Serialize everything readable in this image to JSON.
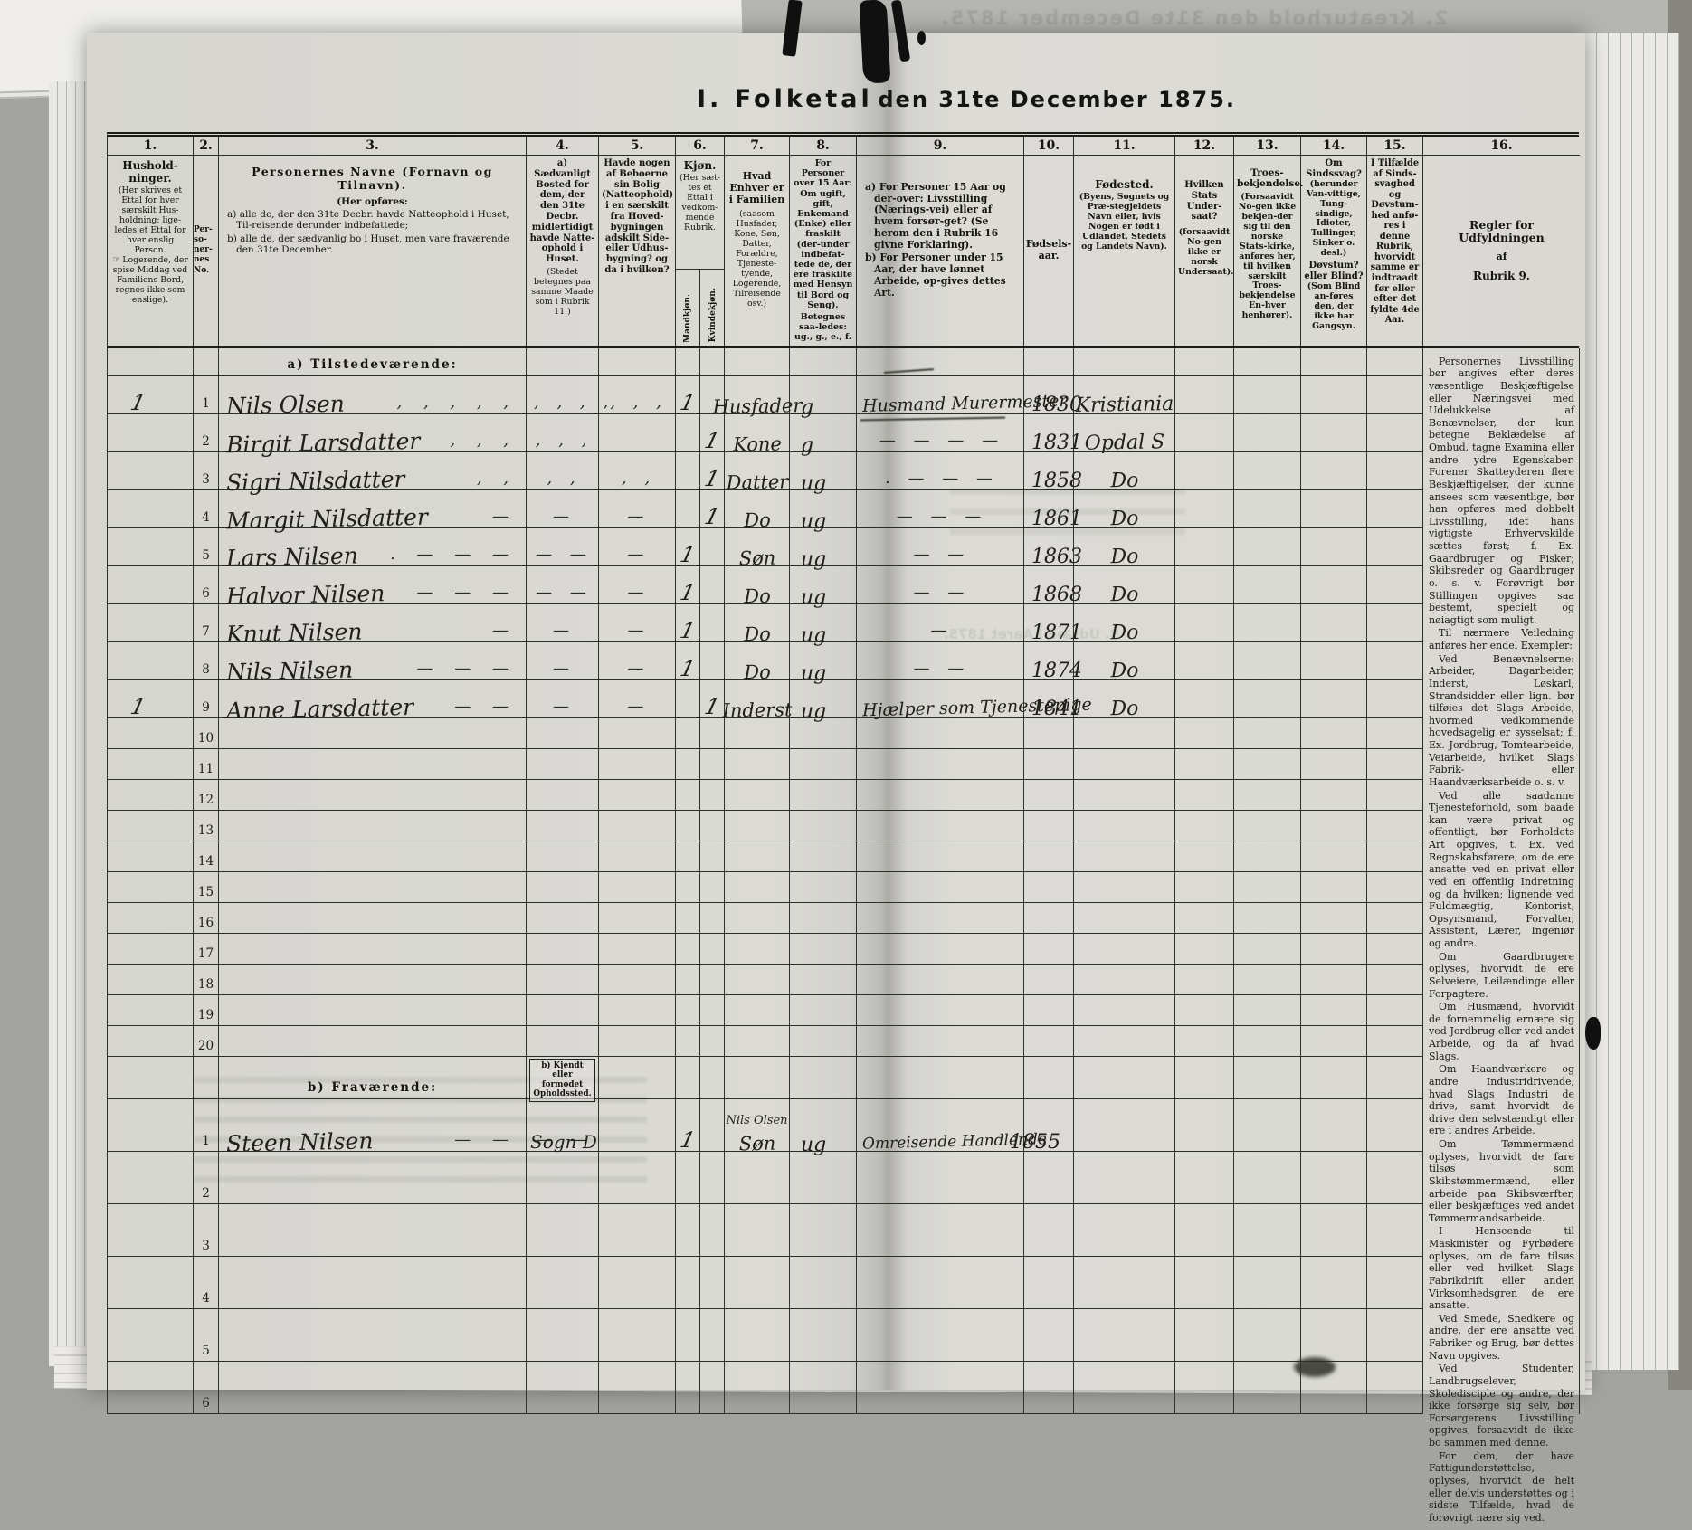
{
  "page": {
    "title_a": "I. Folketal",
    "title_b": "den 31te December 1875.",
    "bleed_top": "2. Kreaturhold den 31te December 1875.",
    "bleed_mid": "3. Udsæd i Aaret 1875."
  },
  "header": {
    "c1": {
      "num": "1.",
      "title": "Hushold-ninger.",
      "note1": "(Her skrives et Ettal for hver særskilt Hus-holdning; lige-ledes et Ettal for hver enslig Person.",
      "note2": "☞ Logerende, der spise Middag ved Familiens Bord, regnes ikke som enslige)."
    },
    "c2": {
      "num": "2.",
      "l1": "Per-",
      "l2": "so-",
      "l3": "ner-",
      "l4": "nes",
      "l5": "No."
    },
    "c3": {
      "num": "3.",
      "title": "Personernes Navne (Fornavn og Tilnavn).",
      "sub": "(Her opføres:",
      "a": "a) alle de, der den 31te Decbr. havde Natteophold i Huset, Til-reisende derunder indbefattede;",
      "b": "b) alle de, der sædvanlig bo i Huset, men vare fraværende den 31te December."
    },
    "c4": {
      "num": "4.",
      "text": "a) Sædvanligt Bosted for dem, der den 31te Decbr. midlertidigt havde Natte-ophold i Huset.",
      "note": "(Stedet betegnes paa samme Maade som i Rubrik 11.)"
    },
    "c5": {
      "num": "5.",
      "text": "Havde nogen af Beboerne sin Bolig (Natteophold) i en særskilt fra Hoved-bygningen adskilt Side- eller Udhus-bygning? og da i hvilken?"
    },
    "c6": {
      "num": "6.",
      "title": "Kjøn.",
      "note": "(Her sæt-tes et Ettal i vedkom-mende Rubrik.",
      "m": "Mandkjøn.",
      "k": "Kvindekjøn."
    },
    "c7": {
      "num": "7.",
      "title": "Hvad Enhver er i Familien",
      "note": "(saasom Husfader, Kone, Søn, Datter, Forældre, Tjeneste-tyende, Logerende, Tilreisende osv.)"
    },
    "c8": {
      "num": "8.",
      "text": "For Personer over 15 Aar: Om ugift, gift, Enkemand (Enke) eller fraskilt (der-under indbefat-tede de, der ere fraskilte med Hensyn til Bord og Seng).",
      "note": "Betegnes saa-ledes: ug., g., e., f."
    },
    "c9": {
      "num": "9.",
      "a": "a) For Personer 15 Aar og der-over: Livsstilling (Nærings-vei) eller af hvem forsør-get? (Se herom den i Rubrik 16 givne Forklaring).",
      "b": "b) For Personer under 15 Aar, der have lønnet Arbeide, op-gives dettes Art."
    },
    "c10": {
      "num": "10.",
      "text": "Fødsels-aar."
    },
    "c11": {
      "num": "11.",
      "title": "Fødested.",
      "note": "(Byens, Sognets og Præ-stegjeldets Navn eller, hvis Nogen er født i Udlandet, Stedets og Landets Navn)."
    },
    "c12": {
      "num": "12.",
      "title": "Hvilken Stats Under-saat?",
      "note": "(forsaavidt No-gen ikke er norsk Undersaat)."
    },
    "c13": {
      "num": "13.",
      "title": "Troes-bekjendelse.",
      "note": "(Forsaavidt No-gen ikke bekjen-der sig til den norske Stats-kirke, anføres her, til hvilken særskilt Troes-bekjendelse En-hver henhører)."
    },
    "c14": {
      "num": "14.",
      "title": "Om Sindssvag?",
      "note": "(herunder Van-vittige, Tung-sindige, Idioter, Tullinger, Sinker o. desl.)",
      "title2": "Døvstum? eller Blind?",
      "note2": "(Som Blind an-føres den, der ikke har Gangsyn."
    },
    "c15": {
      "num": "15.",
      "text": "I Tilfælde af Sinds-svaghed og Døvstum-hed anfø-res i denne Rubrik, hvorvidt samme er indtraadt før eller efter det fyldte 4de Aar."
    },
    "c16": {
      "num": "16.",
      "title": "Regler for Udfyldningen",
      "line2": "af",
      "line3": "Rubrik 9."
    }
  },
  "sections": {
    "a_label": "a) Tilstedeværende:",
    "b_label": "b) Fraværende:",
    "b_note": "b) Kjendt eller formodet Opholdssted."
  },
  "rows_a": [
    {
      "hh": "1",
      "no": "1",
      "name": "Nils Olsen",
      "nm": ", , , , ,",
      "c4m": ", , , ,",
      "c5m": ", , ,",
      "m": "1",
      "k": "",
      "fam": "Husfader",
      "status": "g",
      "occ": "Husmand Murermester",
      "om": "",
      "year": "1830",
      "born": "Kristiania"
    },
    {
      "hh": "",
      "no": "2",
      "name": "Birgit Larsdatter",
      "nm": ", , ,",
      "c4m": ", , ,",
      "c5m": "",
      "m": "",
      "k": "1",
      "fam": "Kone",
      "status": "g",
      "occ": "",
      "om": "— — — —",
      "year": "1831",
      "born": "Opdal S"
    },
    {
      "hh": "",
      "no": "3",
      "name": "Sigri Nilsdatter",
      "nm": ", ,",
      "c4m": ", ,",
      "c5m": ", ,",
      "m": "",
      "k": "1",
      "fam": "Datter",
      "status": "ug",
      "occ": "",
      "om": ". — — —",
      "year": "1858",
      "born": "Do"
    },
    {
      "hh": "",
      "no": "4",
      "name": "Margit Nilsdatter",
      "nm": "—",
      "c4m": "—",
      "c5m": "—",
      "m": "",
      "k": "1",
      "fam": "Do",
      "status": "ug",
      "occ": "",
      "om": "— — —",
      "year": "1861",
      "born": "Do"
    },
    {
      "hh": "",
      "no": "5",
      "name": "Lars Nilsen",
      "nm": ". — — —",
      "c4m": "— —",
      "c5m": "—",
      "m": "1",
      "k": "",
      "fam": "Søn",
      "status": "ug",
      "occ": "",
      "om": "— —",
      "year": "1863",
      "born": "Do"
    },
    {
      "hh": "",
      "no": "6",
      "name": "Halvor Nilsen",
      "nm": "— — —",
      "c4m": "— —",
      "c5m": "—",
      "m": "1",
      "k": "",
      "fam": "Do",
      "status": "ug",
      "occ": "",
      "om": "— —",
      "year": "1868",
      "born": "Do"
    },
    {
      "hh": "",
      "no": "7",
      "name": "Knut Nilsen",
      "nm": "—",
      "c4m": "—",
      "c5m": "—",
      "m": "1",
      "k": "",
      "fam": "Do",
      "status": "ug",
      "occ": "",
      "om": "—",
      "year": "1871",
      "born": "Do"
    },
    {
      "hh": "",
      "no": "8",
      "name": "Nils Nilsen",
      "nm": "— — —",
      "c4m": "—",
      "c5m": "—",
      "m": "1",
      "k": "",
      "fam": "Do",
      "status": "ug",
      "occ": "",
      "om": "— —",
      "year": "1874",
      "born": "Do"
    },
    {
      "hh": "1",
      "no": "9",
      "name": "Anne Larsdatter",
      "nm": "— —",
      "c4m": "—",
      "c5m": "—",
      "m": "",
      "k": "1",
      "fam": "Inderst",
      "status": "ug",
      "occ": "Hjælper som Tjenestepige",
      "om": "",
      "year": "1841",
      "born": "Do"
    },
    {
      "no": "10"
    },
    {
      "no": "11"
    },
    {
      "no": "12"
    },
    {
      "no": "13"
    },
    {
      "no": "14"
    },
    {
      "no": "15"
    },
    {
      "no": "16"
    },
    {
      "no": "17"
    },
    {
      "no": "18"
    },
    {
      "no": "19"
    },
    {
      "no": "20"
    }
  ],
  "rows_b": [
    {
      "no": "1",
      "name": "Steen Nilsen",
      "nm": "—  —",
      "c4": "Sogn D",
      "c4m": "— —",
      "m": "1",
      "k": "",
      "fam_note": "Nils Olsen",
      "fam": "Søn",
      "status": "ug",
      "occ": "Omreisende Handlende",
      "year": "1855",
      "born": ""
    },
    {
      "no": "2"
    },
    {
      "no": "3"
    },
    {
      "no": "4"
    },
    {
      "no": "5"
    },
    {
      "no": "6"
    }
  ],
  "regler": {
    "paragraphs": [
      "Personernes Livsstilling bør angives efter deres væsentlige Beskjæftigelse eller Næringsvei med Udelukkelse af Benævnelser, der kun betegne Beklædelse af Ombud, tagne Examina eller andre ydre Egenskaber. Forener Skatteyderen flere Beskjæftigelser, der kunne ansees som væsentlige, bør han opføres med dobbelt Livsstilling, idet hans vigtigste Erhvervskilde sættes først; f. Ex. Gaardbruger og Fisker; Skibsreder og Gaardbruger o. s. v. Forøvrigt bør Stillingen opgives saa bestemt, specielt og nøiagtigt som muligt.",
      "Til nærmere Veiledning anføres her endel Exempler:",
      "Ved Benævnelserne: Arbeider, Dagarbeider, Inderst, Løskarl, Strandsidder eller lign. bør tilføies det Slags Arbeide, hvormed vedkommende hovedsagelig er sysselsat; f. Ex. Jordbrug, Tomtearbeide, Veiarbeide, hvilket Slags Fabrik- eller Haandværksarbeide o. s. v.",
      "Ved alle saadanne Tjenesteforhold, som baade kan være privat og offentligt, bør Forholdets Art opgives, t. Ex. ved Regnskabsførere, om de ere ansatte ved en privat eller ved en offentlig Indretning og da hvilken; lignende ved Fuldmægtig, Kontorist, Opsynsmand, Forvalter, Assistent, Lærer, Ingeniør og andre.",
      "Om Gaardbrugere oplyses, hvorvidt de ere Selveiere, Leilændinge eller Forpagtere.",
      "Om Husmænd, hvorvidt de fornemmelig ernære sig ved Jordbrug eller ved andet Arbeide, og da af hvad Slags.",
      "Om Haandværkere og andre Industridrivende, hvad Slags Industri de drive, samt hvorvidt de drive den selvstændigt eller ere i andres Arbeide.",
      "Om Tømmermænd oplyses, hvorvidt de fare tilsøs som Skibstømmermænd, eller arbeide paa Skibsværfter, eller beskjæftiges ved andet Tømmermandsarbeide.",
      "I Henseende til Maskinister og Fyrbødere oplyses, om de fare tilsøs eller ved hvilket Slags Fabrikdrift eller anden Virksomhedsgren de ere ansatte.",
      "Ved Smede, Snedkere og andre, der ere ansatte ved Fabriker og Brug, bør dettes Navn opgives.",
      "Ved Studenter, Landbrugselever, Skoledisciple og andre, der ikke forsørge sig selv, bør Forsørgerens Livsstilling opgives, forsaavidt de ikke bo sammen med denne.",
      "For dem, der have Fattigunderstøttelse, oplyses, hvorvidt de helt eller delvis understøttes og i sidste Tilfælde, hvad de forøvrigt nære sig ved."
    ]
  }
}
